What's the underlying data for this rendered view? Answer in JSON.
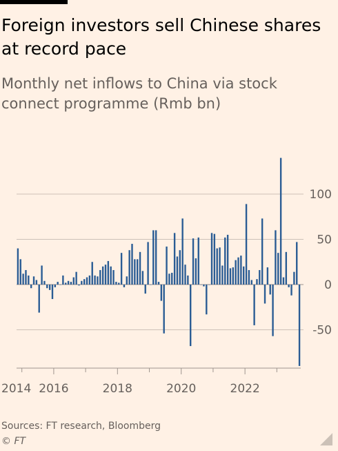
{
  "title": "Foreign investors sell Chinese shares at record pace",
  "subtitle": "Monthly net inflows to China via stock connect programme (Rmb bn)",
  "source": "Sources: FT research, Bloomberg",
  "copyright": "© FT",
  "colors": {
    "background": "#fff1e5",
    "bar": "#2a5c94",
    "text": "#66605c",
    "grid": "#ccc1b7"
  },
  "chart_data": {
    "type": "bar",
    "title": "Foreign investors sell Chinese shares at record pace",
    "subtitle": "Monthly net inflows to China via stock connect programme (Rmb bn)",
    "xlabel": "",
    "ylabel": "",
    "y_axis_position": "right",
    "ylim": [
      -90,
      140
    ],
    "yticks": [
      -50,
      0,
      50,
      100
    ],
    "x_tick_labels": [
      {
        "label": "2014",
        "year": 2014
      },
      {
        "label": "2016",
        "year": 2016
      },
      {
        "label": "2018",
        "year": 2018
      },
      {
        "label": "2020",
        "year": 2020
      },
      {
        "label": "2022",
        "year": 2022
      }
    ],
    "start": "2014-11",
    "end": "2023-08",
    "grid": true,
    "series": [
      {
        "values": [
          40,
          28,
          12,
          16,
          10,
          -4,
          9,
          5,
          -31,
          21,
          4,
          -4,
          -6,
          -16,
          -3,
          3,
          0,
          10,
          2,
          4,
          3,
          8,
          14,
          -1,
          4,
          6,
          8,
          10,
          25,
          10,
          9,
          16,
          20,
          22,
          26,
          20,
          16,
          3,
          2,
          35,
          -3,
          9,
          38,
          45,
          28,
          28,
          36,
          15,
          -10,
          47,
          0,
          60,
          60,
          3,
          -18,
          -54,
          42,
          12,
          13,
          57,
          31,
          38,
          73,
          22,
          10,
          -68,
          51,
          29,
          52,
          0,
          -2,
          -33,
          0,
          57,
          56,
          40,
          41,
          21,
          52,
          55,
          18,
          19,
          27,
          30,
          32,
          20,
          89,
          16,
          5,
          -45,
          6,
          16,
          73,
          -21,
          19,
          -11,
          -57,
          60,
          35,
          140,
          8,
          36,
          -3,
          -12,
          14,
          47,
          -90
        ]
      }
    ]
  }
}
